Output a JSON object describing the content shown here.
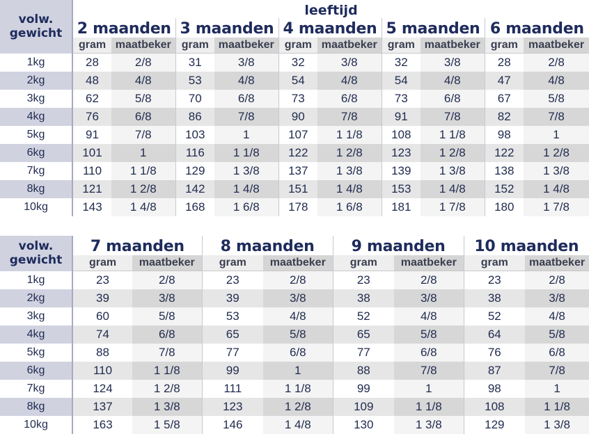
{
  "header_labels": {
    "weight_col_line1": "volw.",
    "weight_col_line2": "gewicht",
    "age_title": "leeftijd",
    "gram": "gram",
    "maatbeker": "maatbeker"
  },
  "table1": {
    "months": [
      "2 maanden",
      "3 maanden",
      "4 maanden",
      "5 maanden",
      "6 maanden"
    ],
    "rows": [
      {
        "weight": "1kg",
        "values": [
          [
            "28",
            "2/8"
          ],
          [
            "31",
            "3/8"
          ],
          [
            "32",
            "3/8"
          ],
          [
            "32",
            "3/8"
          ],
          [
            "28",
            "2/8"
          ]
        ]
      },
      {
        "weight": "2kg",
        "values": [
          [
            "48",
            "4/8"
          ],
          [
            "53",
            "4/8"
          ],
          [
            "54",
            "4/8"
          ],
          [
            "54",
            "4/8"
          ],
          [
            "47",
            "4/8"
          ]
        ]
      },
      {
        "weight": "3kg",
        "values": [
          [
            "62",
            "5/8"
          ],
          [
            "70",
            "6/8"
          ],
          [
            "73",
            "6/8"
          ],
          [
            "73",
            "6/8"
          ],
          [
            "67",
            "5/8"
          ]
        ]
      },
      {
        "weight": "4kg",
        "values": [
          [
            "76",
            "6/8"
          ],
          [
            "86",
            "7/8"
          ],
          [
            "90",
            "7/8"
          ],
          [
            "91",
            "7/8"
          ],
          [
            "82",
            "7/8"
          ]
        ]
      },
      {
        "weight": "5kg",
        "values": [
          [
            "91",
            "7/8"
          ],
          [
            "103",
            "1"
          ],
          [
            "107",
            "1 1/8"
          ],
          [
            "108",
            "1 1/8"
          ],
          [
            "98",
            "1"
          ]
        ]
      },
      {
        "weight": "6kg",
        "values": [
          [
            "101",
            "1"
          ],
          [
            "116",
            "1 1/8"
          ],
          [
            "122",
            "1 2/8"
          ],
          [
            "123",
            "1 2/8"
          ],
          [
            "122",
            "1 2/8"
          ]
        ]
      },
      {
        "weight": "7kg",
        "values": [
          [
            "110",
            "1 1/8"
          ],
          [
            "129",
            "1 3/8"
          ],
          [
            "137",
            "1 3/8"
          ],
          [
            "139",
            "1 3/8"
          ],
          [
            "138",
            "1 3/8"
          ]
        ]
      },
      {
        "weight": "8kg",
        "values": [
          [
            "121",
            "1 2/8"
          ],
          [
            "142",
            "1 4/8"
          ],
          [
            "151",
            "1 4/8"
          ],
          [
            "153",
            "1 4/8"
          ],
          [
            "152",
            "1 4/8"
          ]
        ]
      },
      {
        "weight": "10kg",
        "values": [
          [
            "143",
            "1 4/8"
          ],
          [
            "168",
            "1 6/8"
          ],
          [
            "178",
            "1 6/8"
          ],
          [
            "181",
            "1 7/8"
          ],
          [
            "180",
            "1 7/8"
          ]
        ]
      }
    ]
  },
  "table2": {
    "months": [
      "7 maanden",
      "8 maanden",
      "9 maanden",
      "10 maanden"
    ],
    "rows": [
      {
        "weight": "1kg",
        "values": [
          [
            "23",
            "2/8"
          ],
          [
            "23",
            "2/8"
          ],
          [
            "23",
            "2/8"
          ],
          [
            "23",
            "2/8"
          ]
        ]
      },
      {
        "weight": "2kg",
        "values": [
          [
            "39",
            "3/8"
          ],
          [
            "39",
            "3/8"
          ],
          [
            "38",
            "3/8"
          ],
          [
            "38",
            "3/8"
          ]
        ]
      },
      {
        "weight": "3kg",
        "values": [
          [
            "60",
            "5/8"
          ],
          [
            "53",
            "4/8"
          ],
          [
            "52",
            "4/8"
          ],
          [
            "52",
            "4/8"
          ]
        ]
      },
      {
        "weight": "4kg",
        "values": [
          [
            "74",
            "6/8"
          ],
          [
            "65",
            "5/8"
          ],
          [
            "65",
            "5/8"
          ],
          [
            "64",
            "5/8"
          ]
        ]
      },
      {
        "weight": "5kg",
        "values": [
          [
            "88",
            "7/8"
          ],
          [
            "77",
            "6/8"
          ],
          [
            "77",
            "6/8"
          ],
          [
            "76",
            "6/8"
          ]
        ]
      },
      {
        "weight": "6kg",
        "values": [
          [
            "110",
            "1 1/8"
          ],
          [
            "99",
            "1"
          ],
          [
            "88",
            "7/8"
          ],
          [
            "87",
            "7/8"
          ]
        ]
      },
      {
        "weight": "7kg",
        "values": [
          [
            "124",
            "1 2/8"
          ],
          [
            "111",
            "1 1/8"
          ],
          [
            "99",
            "1"
          ],
          [
            "98",
            "1"
          ]
        ]
      },
      {
        "weight": "8kg",
        "values": [
          [
            "137",
            "1 3/8"
          ],
          [
            "123",
            "1 2/8"
          ],
          [
            "109",
            "1 1/8"
          ],
          [
            "108",
            "1 1/8"
          ]
        ]
      },
      {
        "weight": "10kg",
        "values": [
          [
            "163",
            "1 5/8"
          ],
          [
            "146",
            "1 4/8"
          ],
          [
            "130",
            "1 3/8"
          ],
          [
            "129",
            "1 3/8"
          ]
        ]
      }
    ]
  }
}
